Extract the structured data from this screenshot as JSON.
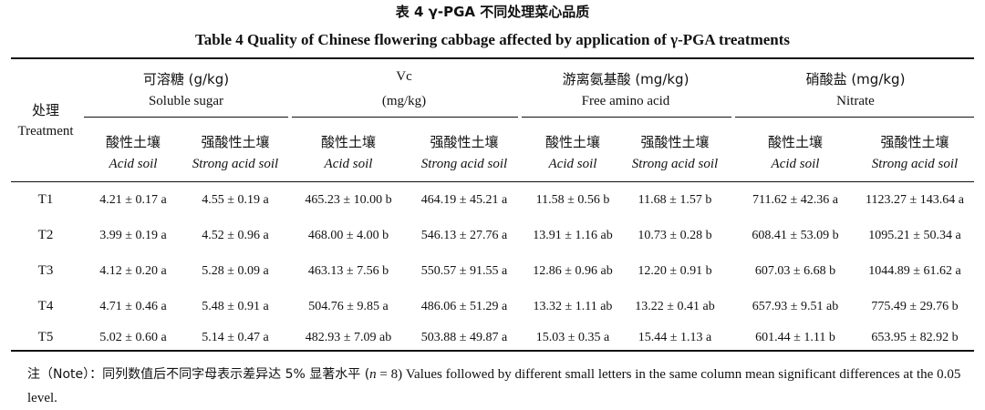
{
  "title_zh": "表 4  γ-PGA 不同处理菜心品质",
  "title_en": "Table 4   Quality of Chinese flowering cabbage affected by application of γ-PGA treatments",
  "header": {
    "treatment_zh": "处理",
    "treatment_en": "Treatment",
    "groups": [
      {
        "zh": "可溶糖 (g/kg)",
        "en": "Soluble sugar"
      },
      {
        "zh": "Vc",
        "en": "(mg/kg)"
      },
      {
        "zh": "游离氨基酸 (mg/kg)",
        "en": "Free amino acid"
      },
      {
        "zh": "硝酸盐 (mg/kg)",
        "en": "Nitrate"
      }
    ],
    "soils": [
      {
        "zh": "酸性土壤",
        "en": "Acid soil"
      },
      {
        "zh": "强酸性土壤",
        "en": "Strong acid soil"
      }
    ]
  },
  "rows": [
    {
      "t": "T1",
      "v": [
        "4.21 ± 0.17 a",
        "4.55 ± 0.19 a",
        "465.23 ± 10.00 b",
        "464.19 ± 45.21 a",
        "11.58 ± 0.56 b",
        "11.68 ± 1.57 b",
        "711.62 ± 42.36 a",
        "1123.27 ± 143.64 a"
      ]
    },
    {
      "t": "T2",
      "v": [
        "3.99 ± 0.19 a",
        "4.52 ± 0.96 a",
        "468.00 ± 4.00 b",
        "546.13 ± 27.76 a",
        "13.91 ± 1.16 ab",
        "10.73 ± 0.28 b",
        "608.41 ± 53.09 b",
        "1095.21 ± 50.34 a"
      ]
    },
    {
      "t": "T3",
      "v": [
        "4.12 ± 0.20 a",
        "5.28 ± 0.09 a",
        "463.13 ± 7.56 b",
        "550.57 ± 91.55 a",
        "12.86 ± 0.96 ab",
        "12.20 ± 0.91 b",
        "607.03 ± 6.68 b",
        "1044.89 ± 61.62 a"
      ]
    },
    {
      "t": "T4",
      "v": [
        "4.71 ± 0.46 a",
        "5.48 ± 0.91 a",
        "504.76 ± 9.85 a",
        "486.06 ± 51.29 a",
        "13.32 ± 1.11 ab",
        "13.22 ± 0.41 ab",
        "657.93 ± 9.51 ab",
        "775.49 ± 29.76 b"
      ]
    },
    {
      "t": "T5",
      "v": [
        "5.02 ± 0.60 a",
        "5.14 ± 0.47 a",
        "482.93 ± 7.09 ab",
        "503.88 ± 49.87 a",
        "15.03 ± 0.35 a",
        "15.44 ± 1.13 a",
        "601.44 ± 1.11 b",
        "653.95 ± 82.92 b"
      ]
    }
  ],
  "note": {
    "zh": "注（Note）：同列数值后不同字母表示差异达 5% 显著水平 (",
    "n": "n",
    "eq": " = 8) ",
    "en": "Values followed by different small letters in the same column mean significant differences at the 0.05 level."
  }
}
